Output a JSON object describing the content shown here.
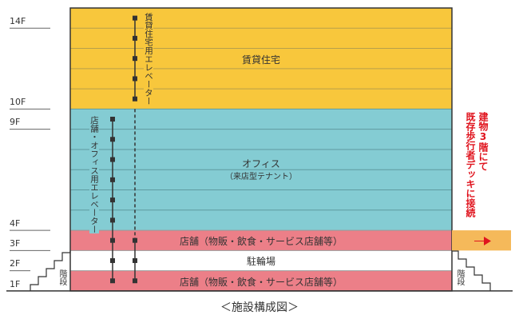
{
  "floors": [
    "14F",
    "10F",
    "9F",
    "4F",
    "3F",
    "2F",
    "1F"
  ],
  "zones": {
    "residential": {
      "label": "賃貸住宅",
      "color": "#f8c73c"
    },
    "office": {
      "label": "オフィス",
      "sublabel": "（来店型テナント）",
      "color": "#84ccd3"
    },
    "retail_3f": {
      "label": "店舗（物販・飲食・サービス店舗等）",
      "color": "#ec7f88"
    },
    "parking_2f": {
      "label": "駐輪場",
      "color": "#ffffff"
    },
    "retail_1f": {
      "label": "店舗（物販・飲食・サービス店舗等）",
      "color": "#ec7f88"
    }
  },
  "elevators": {
    "residential": "賃貸住宅用エレベーター",
    "office": "店舗・オフィス用エレベーター"
  },
  "stairs": {
    "left": "階段",
    "right": "階段"
  },
  "annex": {
    "note_line1": "建物3階にて",
    "note_line2": "既存歩行者デッキに接続",
    "note_color": "#e0141e",
    "deck_color": "#f5b95a",
    "arrow": "right-arrow-icon"
  },
  "caption": "＜施設構成図＞"
}
